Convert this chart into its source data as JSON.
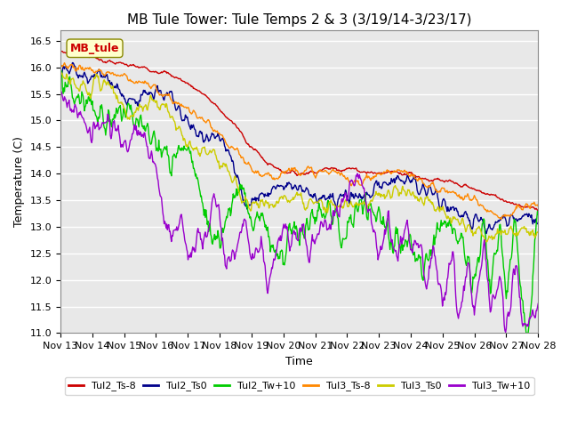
{
  "title": "MB Tule Tower: Tule Temps 2 & 3 (3/19/14-3/23/17)",
  "xlabel": "Time",
  "ylabel": "Temperature (C)",
  "ylim": [
    11.0,
    16.7
  ],
  "yticks": [
    11.0,
    11.5,
    12.0,
    12.5,
    13.0,
    13.5,
    14.0,
    14.5,
    15.0,
    15.5,
    16.0,
    16.5
  ],
  "xtick_labels": [
    "Nov 13",
    "Nov 14",
    "Nov 15",
    "Nov 16",
    "Nov 17",
    "Nov 18",
    "Nov 19",
    "Nov 20",
    "Nov 21",
    "Nov 22",
    "Nov 23",
    "Nov 24",
    "Nov 25",
    "Nov 26",
    "Nov 27",
    "Nov 28"
  ],
  "line_colors": {
    "Tul2_Ts-8": "#cc0000",
    "Tul2_Ts0": "#00008b",
    "Tul2_Tw+10": "#00cc00",
    "Tul3_Ts-8": "#ff8800",
    "Tul3_Ts0": "#cccc00",
    "Tul3_Tw+10": "#9900cc"
  },
  "legend_label": "MB_tule",
  "legend_label_color": "#cc0000",
  "background_color": "#e8e8e8",
  "grid_color": "#ffffff",
  "title_fontsize": 11,
  "axis_fontsize": 9,
  "tick_fontsize": 8
}
